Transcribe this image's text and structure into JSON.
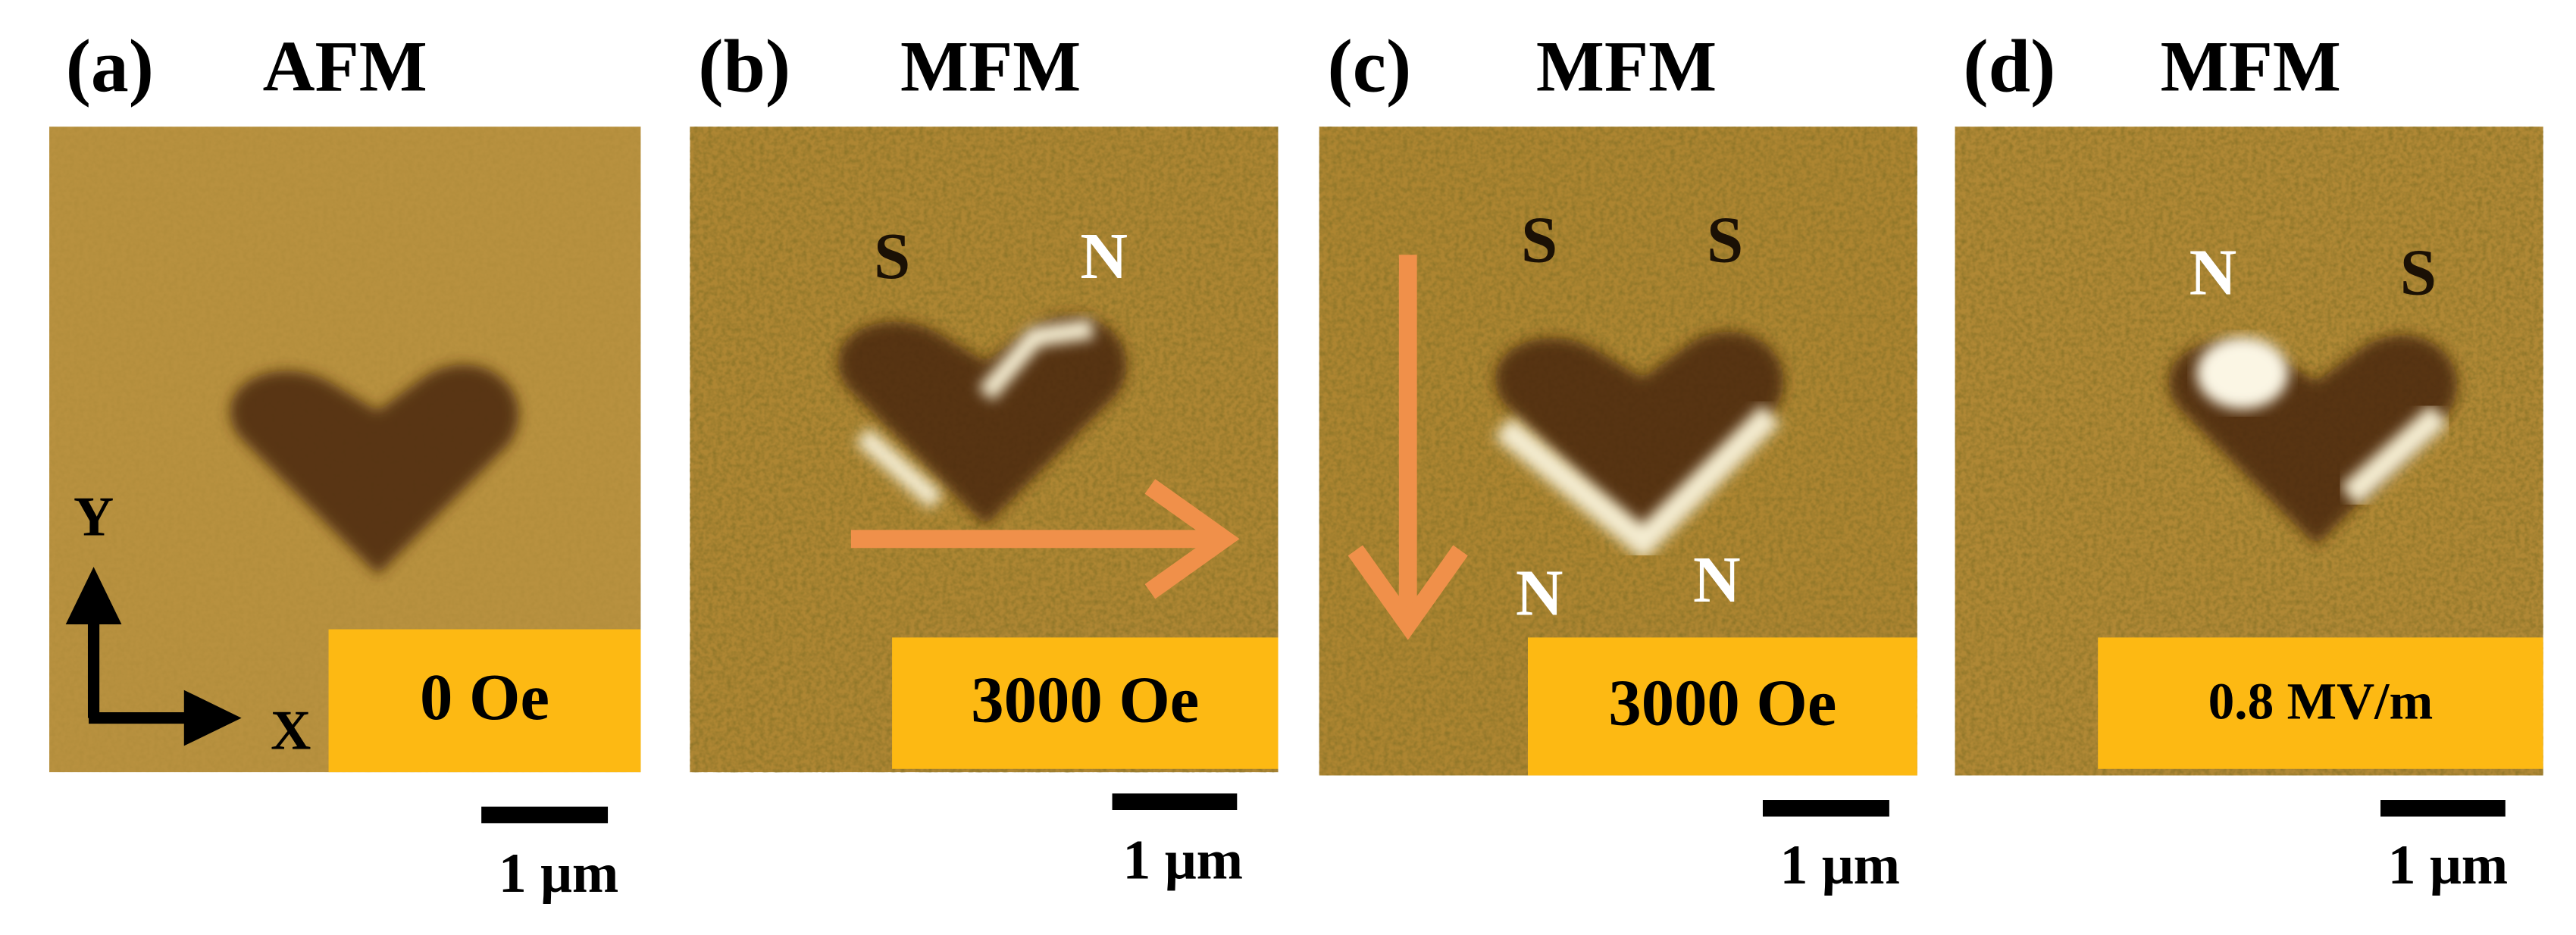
{
  "panels": [
    {
      "label": "(a)",
      "title": "AFM",
      "field": "0 Oe",
      "scale_bar": "1 μm",
      "poles": []
    },
    {
      "label": "(b)",
      "title": "MFM",
      "field": "3000 Oe",
      "scale_bar": "1 μm",
      "poles": [
        "S",
        "N"
      ]
    },
    {
      "label": "(c)",
      "title": "MFM",
      "field": "3000 Oe",
      "scale_bar": "1 μm",
      "poles": [
        "S",
        "S",
        "N",
        "N"
      ]
    },
    {
      "label": "(d)",
      "title": "MFM",
      "field": "0.8 MV/m",
      "scale_bar": "1 μm",
      "poles": [
        "N",
        "S"
      ]
    }
  ],
  "axes": {
    "x": "X",
    "y": "Y"
  }
}
